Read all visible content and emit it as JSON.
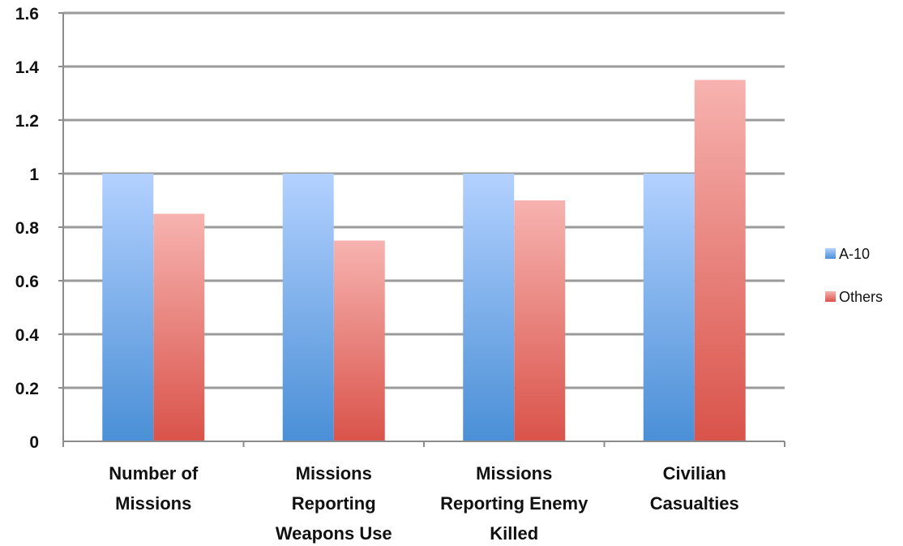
{
  "chart_data": {
    "type": "bar",
    "categories": [
      [
        "Number of",
        "Missions"
      ],
      [
        "Missions",
        "Reporting",
        "Weapons Use"
      ],
      [
        "Missions",
        "Reporting Enemy",
        "Killed"
      ],
      [
        "Civilian",
        "Casualties"
      ]
    ],
    "series": [
      {
        "name": "A-10",
        "values": [
          1,
          1,
          1,
          1
        ],
        "color_top": "#b3d1ff",
        "color_bottom": "#4a8fd6"
      },
      {
        "name": "Others",
        "values": [
          0.85,
          0.75,
          0.9,
          1.35
        ],
        "color_top": "#f7b3b0",
        "color_bottom": "#d9534a"
      }
    ],
    "ylim": [
      0,
      1.6
    ],
    "yticks": [
      "0",
      "0.2",
      "0.4",
      "0.6",
      "0.8",
      "1",
      "1.2",
      "1.4",
      "1.6"
    ],
    "title": "",
    "xlabel": "",
    "ylabel": "",
    "grid": true,
    "legend_position": "right"
  }
}
